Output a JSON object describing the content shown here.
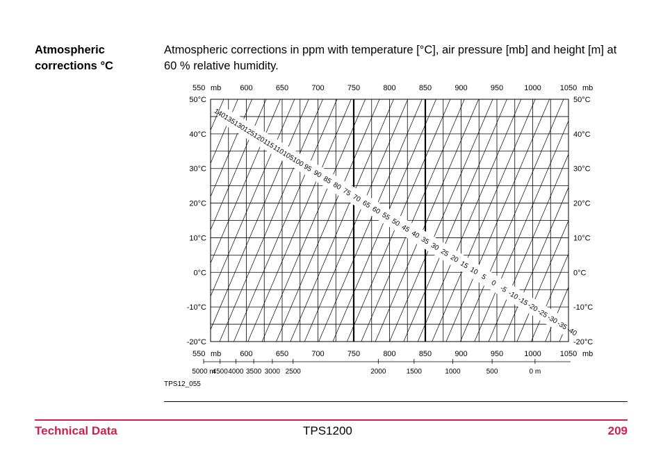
{
  "section": {
    "heading_line1": "Atmospheric",
    "heading_line2": "corrections °C",
    "intro": "Atmospheric corrections in ppm with temperature [°C], air pressure [mb] and height [m] at 60 % relative humidity."
  },
  "chart_data": {
    "type": "nomogram",
    "pressure_ticks": [
      "550",
      "600",
      "650",
      "700",
      "750",
      "800",
      "850",
      "900",
      "950",
      "1000",
      "1050"
    ],
    "pressure_unit": "mb",
    "pressure_range": [
      550,
      1050
    ],
    "temperature_ticks": [
      "50°C",
      "40°C",
      "30°C",
      "20°C",
      "10°C",
      "0°C",
      "-10°C",
      "-20°C"
    ],
    "temperature_range": [
      -20,
      50
    ],
    "height_labels": [
      {
        "label": "5000",
        "unit": "m",
        "pressure": 550
      },
      {
        "label": "4500",
        "pressure": 573
      },
      {
        "label": "4000",
        "pressure": 595
      },
      {
        "label": "3500",
        "pressure": 620
      },
      {
        "label": "3000",
        "pressure": 646
      },
      {
        "label": "2500",
        "pressure": 675
      },
      {
        "label": "2000",
        "pressure": 794
      },
      {
        "label": "1500",
        "pressure": 844
      },
      {
        "label": "1000",
        "pressure": 898
      },
      {
        "label": "500",
        "pressure": 953
      },
      {
        "label": "0",
        "unit": "m",
        "pressure": 1013
      }
    ],
    "bold_pressure_lines": [
      750,
      850
    ],
    "ppm_labels": [
      "140",
      "135",
      "130",
      "125",
      "120",
      "115",
      "110",
      "105",
      "100",
      "95",
      "90",
      "85",
      "80",
      "75",
      "70",
      "65",
      "60",
      "55",
      "50",
      "45",
      "40",
      "35",
      "30",
      "25",
      "20",
      "15",
      "10",
      "5",
      "0",
      "-5",
      "-10",
      "-15",
      "-20",
      "-25",
      "-30",
      "-35",
      "-40"
    ],
    "ppm_label_pressure_start": 563,
    "ppm_label_pressure_end": 1055,
    "ppm_label_temp_start": 46,
    "ppm_label_temp_end": -17,
    "isoline_count": 40
  },
  "figure_id": "TPS12_055",
  "footer": {
    "left": "Technical Data",
    "center": "TPS1200",
    "page": "209"
  }
}
